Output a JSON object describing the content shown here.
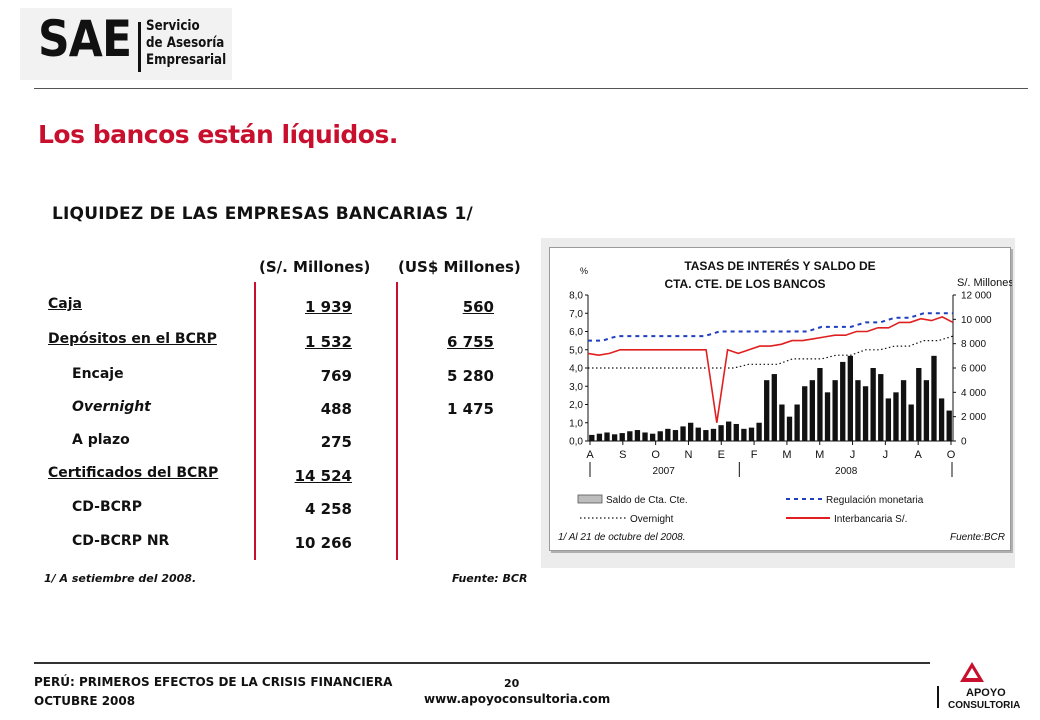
{
  "logo": {
    "mark": "SAE",
    "line1": "Servicio",
    "line2": "de Asesoría",
    "line3": "Empresarial"
  },
  "title": "Los bancos están líquidos.",
  "table": {
    "title": "LIQUIDEZ DE LAS EMPRESAS BANCARIAS 1/",
    "col_sol": "(S/. Millones)",
    "col_usd": "(US$ Millones)",
    "rows": [
      {
        "label": "Caja",
        "sol": "1 939",
        "usd": "560"
      },
      {
        "label": "Depósitos en el BCRP",
        "sol": "1 532",
        "usd": "6 755"
      },
      {
        "label": "Encaje",
        "sol": "769",
        "usd": "5 280"
      },
      {
        "label": "Overnight",
        "sol": "488",
        "usd": "1 475"
      },
      {
        "label": "A plazo",
        "sol": "275",
        "usd": ""
      },
      {
        "label": "Certificados del BCRP",
        "sol": "14 524",
        "usd": ""
      },
      {
        "label": "CD-BCRP",
        "sol": "4 258",
        "usd": ""
      },
      {
        "label": "CD-BCRP NR",
        "sol": "10 266",
        "usd": ""
      }
    ],
    "note": "1/ A setiembre del 2008.",
    "source": "Fuente: BCR"
  },
  "chart_data": {
    "type": "bar+line",
    "title_line1": "TASAS DE INTERÉS Y SALDO DE",
    "title_line2": "CTA. CTE. DE LOS BANCOS",
    "left_unit": "%",
    "right_unit": "S/. Millones",
    "left_ylim": [
      0,
      8
    ],
    "right_ylim": [
      0,
      12000
    ],
    "left_ticks": [
      "8,0",
      "7,0",
      "6,0",
      "5,0",
      "4,0",
      "3,0",
      "2,0",
      "1,0",
      "0,0"
    ],
    "right_ticks": [
      "12 000",
      "10 000",
      "8 000",
      "6 000",
      "4 000",
      "2 000",
      "0"
    ],
    "months": [
      "A",
      "S",
      "O",
      "N",
      "E",
      "F",
      "M",
      "M",
      "J",
      "J",
      "A",
      "O"
    ],
    "years": [
      "2007",
      "2008"
    ],
    "series": [
      {
        "name": "Saldo de Cta. Cte.",
        "style": "bars",
        "color": "#111111",
        "values": [
          500,
          600,
          700,
          550,
          650,
          800,
          900,
          700,
          600,
          800,
          1000,
          900,
          1200,
          1500,
          1100,
          900,
          1000,
          1300,
          1600,
          1400,
          1000,
          1100,
          1500,
          5000,
          5500,
          3000,
          2000,
          3000,
          4500,
          5000,
          6000,
          4000,
          5000,
          6500,
          7000,
          5000,
          4500,
          6000,
          5500,
          3500,
          4000,
          5000,
          3000,
          6000,
          5000,
          7000,
          3500,
          2500
        ]
      },
      {
        "name": "Regulación monetaria",
        "style": "dashed",
        "color": "#1f3fbf",
        "values": [
          5.5,
          5.5,
          5.75,
          5.75,
          5.75,
          5.75,
          5.75,
          5.75,
          5.75,
          6.0,
          6.0,
          6.0,
          6.0,
          6.0,
          6.0,
          6.0,
          6.25,
          6.25,
          6.25,
          6.5,
          6.5,
          6.75,
          6.75,
          7.0,
          7.0,
          7.0
        ]
      },
      {
        "name": "Overnight",
        "style": "dotted",
        "color": "#111111",
        "values": [
          4.0,
          4.0,
          4.0,
          4.0,
          4.0,
          4.0,
          4.0,
          4.0,
          4.0,
          4.0,
          4.0,
          4.2,
          4.2,
          4.2,
          4.5,
          4.5,
          4.5,
          4.7,
          4.7,
          5.0,
          5.0,
          5.2,
          5.2,
          5.5,
          5.5,
          5.75
        ]
      },
      {
        "name": "Interbancaria S/.",
        "style": "line",
        "color": "#e02020",
        "values": [
          4.8,
          4.7,
          4.8,
          5.0,
          5.0,
          5.0,
          5.0,
          5.0,
          5.0,
          5.0,
          5.0,
          5.0,
          1.0,
          5.0,
          4.8,
          5.0,
          5.2,
          5.2,
          5.3,
          5.5,
          5.5,
          5.6,
          5.7,
          5.8,
          5.8,
          6.0,
          6.0,
          6.2,
          6.2,
          6.5,
          6.5,
          6.7,
          6.6,
          6.8,
          6.5
        ]
      }
    ],
    "note": "1/ Al 21 de octubre del 2008.",
    "source": "Fuente:BCR"
  },
  "footer": {
    "line1": "PERÚ: PRIMEROS EFECTOS DE LA CRISIS FINANCIERA",
    "line2": "OCTUBRE 2008",
    "page": "20",
    "url": "www.apoyoconsultoria.com",
    "brand1": "APOYO",
    "brand2": "CONSULTORIA"
  }
}
